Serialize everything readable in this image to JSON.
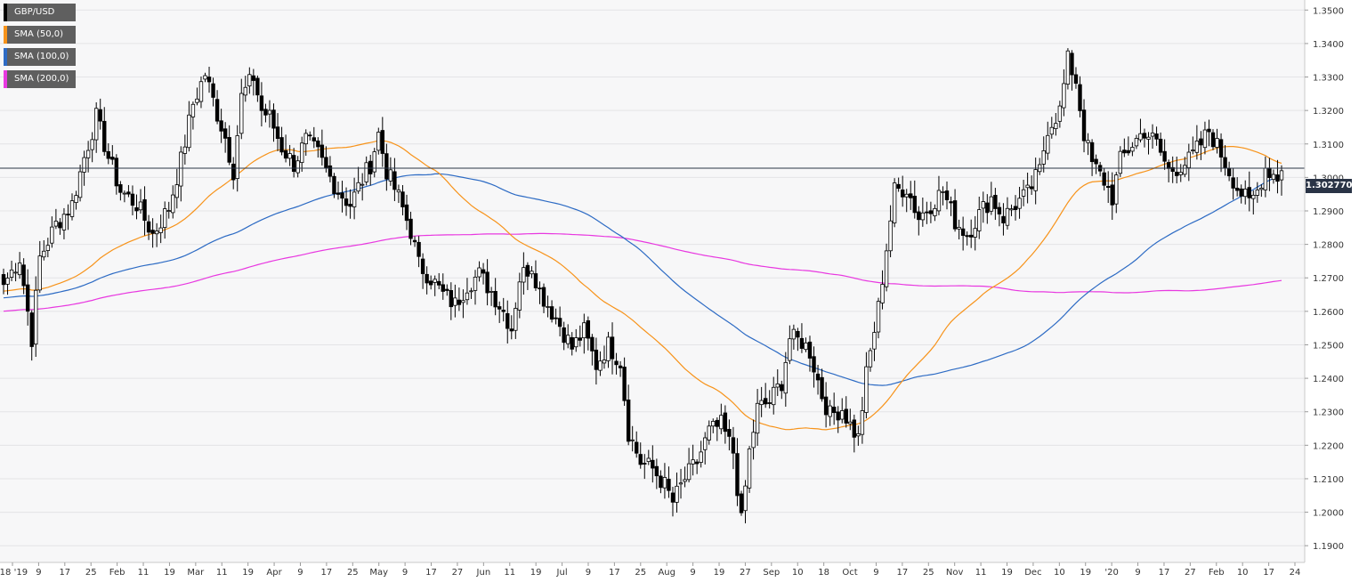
{
  "chart_data": {
    "type": "candlestick",
    "symbol": "GBP/USD",
    "ylim": [
      1.185,
      1.353
    ],
    "y_ticks": [
      "1.3500",
      "1.3400",
      "1.3300",
      "1.3200",
      "1.3100",
      "1.3000",
      "1.2900",
      "1.2800",
      "1.2700",
      "1.2600",
      "1.2500",
      "1.2400",
      "1.2300",
      "1.2200",
      "1.2100",
      "1.2000",
      "1.1900"
    ],
    "x_ticks": [
      "'18 '19",
      "9",
      "17",
      "25",
      "Feb",
      "11",
      "19",
      "Mar",
      "11",
      "19",
      "Apr",
      "9",
      "17",
      "25",
      "May",
      "9",
      "17",
      "27",
      "Jun",
      "11",
      "19",
      "Jul",
      "9",
      "17",
      "25",
      "Aug",
      "9",
      "19",
      "27",
      "Sep",
      "10",
      "18",
      "Oct",
      "9",
      "17",
      "25",
      "Nov",
      "11",
      "19",
      "Dec",
      "10",
      "19",
      "'20",
      "9",
      "17",
      "27",
      "Feb",
      "10",
      "17",
      "24"
    ],
    "grid": true,
    "current_price": 1.30277,
    "current_price_label": "1.302770",
    "legend_position": "top-left",
    "series": [
      {
        "name": "GBP/USD",
        "color": "#000000"
      },
      {
        "name": "SMA (50,0)",
        "color": "#f7931a"
      },
      {
        "name": "SMA (100,0)",
        "color": "#2d6bc4"
      },
      {
        "name": "SMA (200,0)",
        "color": "#e838e0"
      }
    ],
    "closes_anchor": [
      [
        0,
        1.268
      ],
      [
        4,
        1.276
      ],
      [
        7,
        1.252
      ],
      [
        9,
        1.276
      ],
      [
        13,
        1.286
      ],
      [
        17,
        1.292
      ],
      [
        20,
        1.306
      ],
      [
        23,
        1.318
      ],
      [
        26,
        1.306
      ],
      [
        29,
        1.296
      ],
      [
        33,
        1.292
      ],
      [
        37,
        1.283
      ],
      [
        41,
        1.291
      ],
      [
        44,
        1.305
      ],
      [
        47,
        1.322
      ],
      [
        50,
        1.331
      ],
      [
        53,
        1.319
      ],
      [
        55,
        1.312
      ],
      [
        57,
        1.302
      ],
      [
        59,
        1.324
      ],
      [
        62,
        1.33
      ],
      [
        64,
        1.32
      ],
      [
        66,
        1.318
      ],
      [
        69,
        1.309
      ],
      [
        72,
        1.304
      ],
      [
        75,
        1.311
      ],
      [
        78,
        1.307
      ],
      [
        80,
        1.302
      ],
      [
        83,
        1.296
      ],
      [
        86,
        1.292
      ],
      [
        88,
        1.297
      ],
      [
        91,
        1.304
      ],
      [
        93,
        1.313
      ],
      [
        95,
        1.302
      ],
      [
        98,
        1.294
      ],
      [
        101,
        1.284
      ],
      [
        103,
        1.274
      ],
      [
        106,
        1.27
      ],
      [
        109,
        1.265
      ],
      [
        112,
        1.262
      ],
      [
        115,
        1.268
      ],
      [
        118,
        1.271
      ],
      [
        121,
        1.266
      ],
      [
        124,
        1.26
      ],
      [
        126,
        1.255
      ],
      [
        128,
        1.27
      ],
      [
        131,
        1.274
      ],
      [
        133,
        1.266
      ],
      [
        135,
        1.262
      ],
      [
        138,
        1.256
      ],
      [
        141,
        1.249
      ],
      [
        144,
        1.254
      ],
      [
        147,
        1.244
      ],
      [
        150,
        1.25
      ],
      [
        153,
        1.245
      ],
      [
        155,
        1.224
      ],
      [
        158,
        1.215
      ],
      [
        161,
        1.213
      ],
      [
        164,
        1.208
      ],
      [
        166,
        1.203
      ],
      [
        169,
        1.21
      ],
      [
        172,
        1.215
      ],
      [
        175,
        1.224
      ],
      [
        178,
        1.226
      ],
      [
        181,
        1.218
      ],
      [
        183,
        1.197
      ],
      [
        185,
        1.218
      ],
      [
        187,
        1.231
      ],
      [
        190,
        1.233
      ],
      [
        193,
        1.239
      ],
      [
        195,
        1.252
      ],
      [
        198,
        1.251
      ],
      [
        200,
        1.248
      ],
      [
        203,
        1.235
      ],
      [
        205,
        1.229
      ],
      [
        208,
        1.231
      ],
      [
        210,
        1.226
      ],
      [
        212,
        1.222
      ],
      [
        214,
        1.241
      ],
      [
        217,
        1.261
      ],
      [
        219,
        1.279
      ],
      [
        221,
        1.296
      ],
      [
        224,
        1.297
      ],
      [
        227,
        1.288
      ],
      [
        230,
        1.292
      ],
      [
        233,
        1.296
      ],
      [
        236,
        1.287
      ],
      [
        239,
        1.283
      ],
      [
        242,
        1.289
      ],
      [
        245,
        1.294
      ],
      [
        248,
        1.288
      ],
      [
        251,
        1.292
      ],
      [
        254,
        1.295
      ],
      [
        257,
        1.302
      ],
      [
        259,
        1.315
      ],
      [
        262,
        1.32
      ],
      [
        264,
        1.335
      ],
      [
        266,
        1.329
      ],
      [
        268,
        1.313
      ],
      [
        270,
        1.304
      ],
      [
        273,
        1.299
      ],
      [
        275,
        1.294
      ],
      [
        277,
        1.305
      ],
      [
        280,
        1.31
      ],
      [
        283,
        1.314
      ],
      [
        286,
        1.31
      ],
      [
        289,
        1.302
      ],
      [
        291,
        1.303
      ],
      [
        294,
        1.305
      ],
      [
        297,
        1.31
      ],
      [
        299,
        1.314
      ],
      [
        302,
        1.307
      ],
      [
        304,
        1.302
      ],
      [
        306,
        1.297
      ],
      [
        309,
        1.292
      ],
      [
        311,
        1.296
      ],
      [
        313,
        1.303
      ],
      [
        316,
        1.3
      ],
      [
        317,
        1.302
      ]
    ]
  }
}
